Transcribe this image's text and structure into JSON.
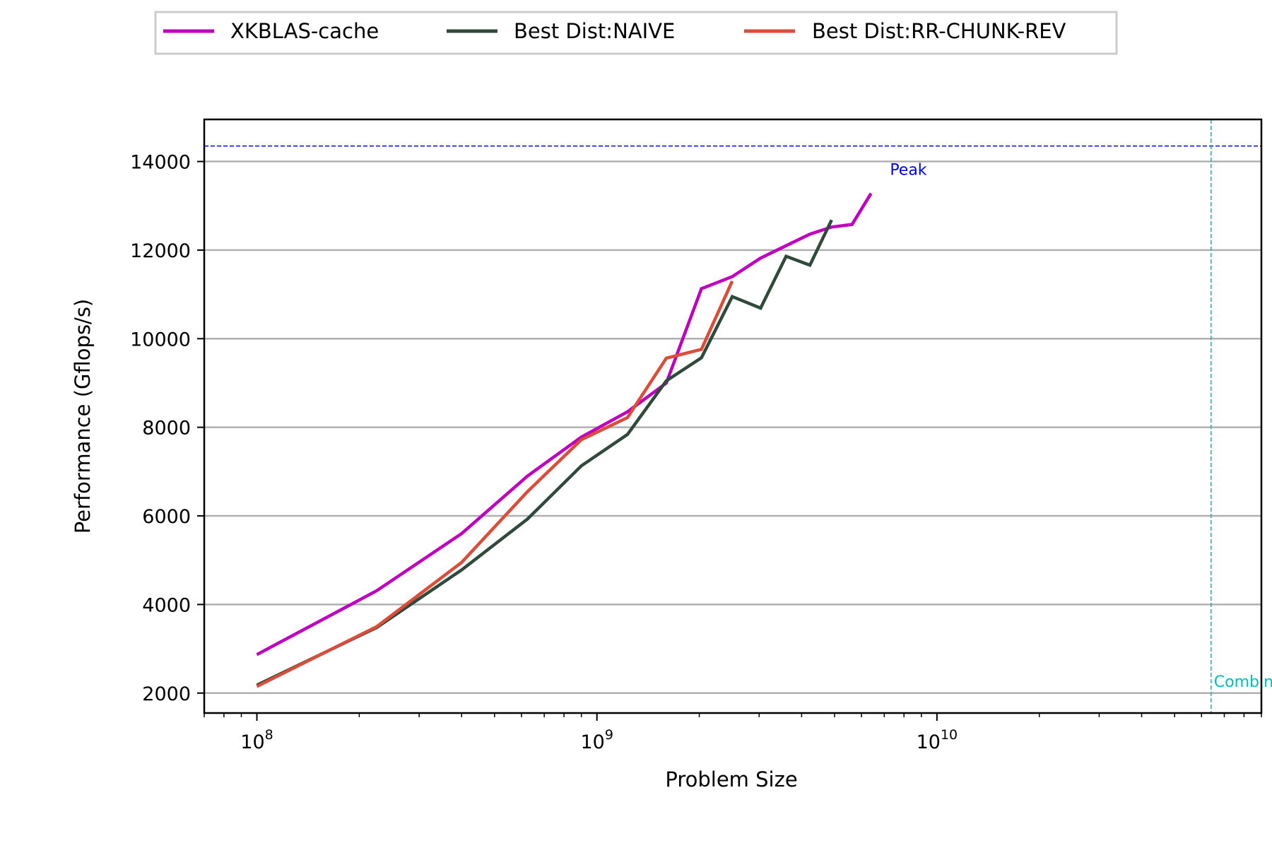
{
  "chart_data": {
    "type": "line",
    "xscale": "log",
    "xlabel": "Problem Size",
    "ylabel": "Performance (Gflops/s)",
    "xlim": [
      70000000,
      90000000000
    ],
    "ylim": [
      1550,
      14950
    ],
    "y_ticks": [
      2000,
      4000,
      6000,
      8000,
      10000,
      12000,
      14000
    ],
    "y_tick_labels": [
      "2000",
      "4000",
      "6000",
      "8000",
      "10000",
      "12000",
      "14000"
    ],
    "x_ticks": [
      100000000,
      1000000000,
      10000000000
    ],
    "x_tick_labels": [
      {
        "base": "10",
        "exp": "8"
      },
      {
        "base": "10",
        "exp": "9"
      },
      {
        "base": "10",
        "exp": "10"
      }
    ],
    "grid": "horizontal",
    "legend_position": "top-center",
    "series": [
      {
        "name": "XKBLAS-cache",
        "color": "#bf00bf",
        "points": [
          [
            100000000,
            2870
          ],
          [
            225000000,
            4310
          ],
          [
            400000000,
            5600
          ],
          [
            625000000,
            6900
          ],
          [
            900000000,
            7780
          ],
          [
            1230000000,
            8350
          ],
          [
            1600000000,
            9000
          ],
          [
            2030000000,
            11130
          ],
          [
            2500000000,
            11400
          ],
          [
            3030000000,
            11820
          ],
          [
            3600000000,
            12100
          ],
          [
            4230000000,
            12360
          ],
          [
            4900000000,
            12520
          ],
          [
            5630000000,
            12580
          ],
          [
            6400000000,
            13280
          ]
        ]
      },
      {
        "name": "Best Dist:NAIVE",
        "color": "#2f4a3a",
        "points": [
          [
            100000000,
            2180
          ],
          [
            225000000,
            3480
          ],
          [
            400000000,
            4780
          ],
          [
            625000000,
            5930
          ],
          [
            900000000,
            7130
          ],
          [
            1230000000,
            7840
          ],
          [
            1600000000,
            9050
          ],
          [
            2030000000,
            9570
          ],
          [
            2500000000,
            10950
          ],
          [
            3030000000,
            10690
          ],
          [
            3600000000,
            11860
          ],
          [
            4230000000,
            11660
          ],
          [
            4900000000,
            12680
          ]
        ]
      },
      {
        "name": "Best Dist:RR-CHUNK-REV",
        "color": "#dd4b39",
        "points": [
          [
            100000000,
            2150
          ],
          [
            225000000,
            3500
          ],
          [
            400000000,
            4950
          ],
          [
            625000000,
            6550
          ],
          [
            900000000,
            7720
          ],
          [
            1230000000,
            8220
          ],
          [
            1600000000,
            9560
          ],
          [
            2030000000,
            9760
          ],
          [
            2500000000,
            11300
          ]
        ]
      }
    ],
    "reference_lines": [
      {
        "orientation": "horizontal",
        "value": 14350,
        "label": "Peak",
        "color": "#0000ff"
      },
      {
        "orientation": "vertical",
        "value": 64000000000,
        "label": "Combined",
        "color": "#00bfbf"
      }
    ]
  }
}
